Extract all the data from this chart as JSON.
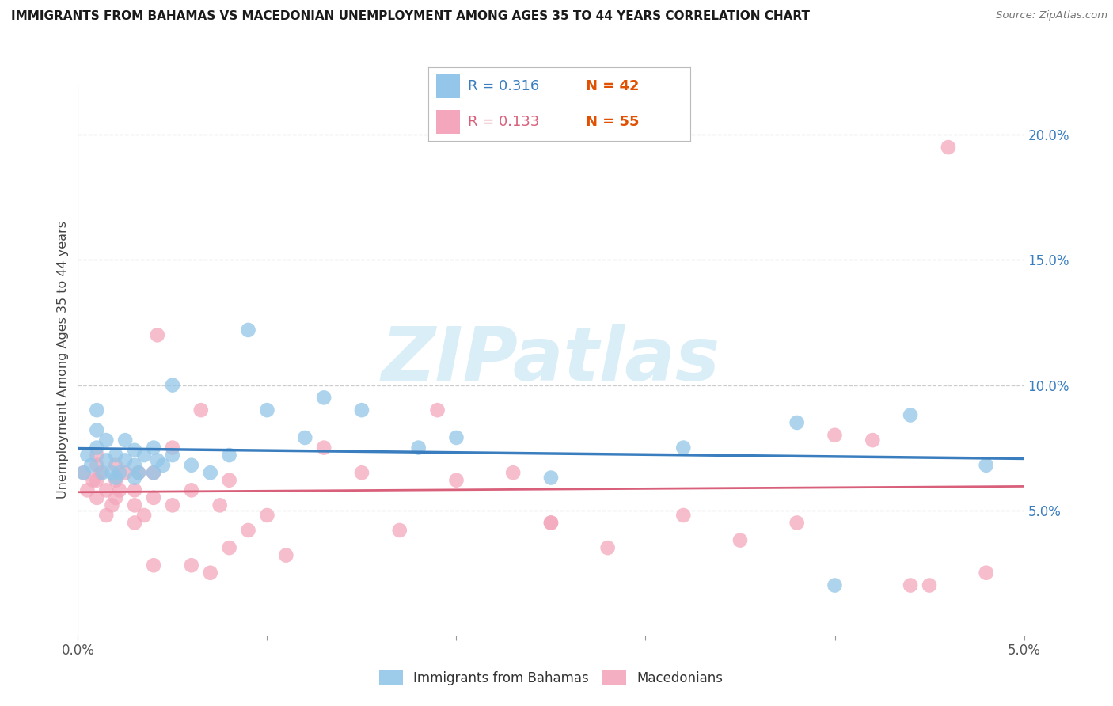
{
  "title": "IMMIGRANTS FROM BAHAMAS VS MACEDONIAN UNEMPLOYMENT AMONG AGES 35 TO 44 YEARS CORRELATION CHART",
  "source": "Source: ZipAtlas.com",
  "ylabel": "Unemployment Among Ages 35 to 44 years",
  "xlim": [
    0.0,
    0.05
  ],
  "ylim": [
    0.0,
    0.22
  ],
  "yticks": [
    0.05,
    0.1,
    0.15,
    0.2
  ],
  "ytick_labels": [
    "5.0%",
    "10.0%",
    "15.0%",
    "20.0%"
  ],
  "xticks": [
    0.0,
    0.01,
    0.02,
    0.03,
    0.04,
    0.05
  ],
  "xtick_labels": [
    "0.0%",
    "",
    "",
    "",
    "",
    "5.0%"
  ],
  "legend_r1": "R = 0.316",
  "legend_n1": "N = 42",
  "legend_r2": "R = 0.133",
  "legend_n2": "N = 55",
  "blue_color": "#93c6e8",
  "pink_color": "#f4a7bc",
  "blue_line_color": "#3a7ebf",
  "pink_line_color": "#d9607a",
  "n_color": "#e05000",
  "watermark_color": "#daeef8",
  "blue_scatter_x": [
    0.0003,
    0.0005,
    0.0007,
    0.001,
    0.001,
    0.001,
    0.0013,
    0.0015,
    0.0015,
    0.0018,
    0.002,
    0.002,
    0.0022,
    0.0025,
    0.0025,
    0.003,
    0.003,
    0.003,
    0.0032,
    0.0035,
    0.004,
    0.004,
    0.0042,
    0.0045,
    0.005,
    0.005,
    0.006,
    0.007,
    0.008,
    0.009,
    0.01,
    0.012,
    0.013,
    0.015,
    0.018,
    0.02,
    0.025,
    0.032,
    0.038,
    0.04,
    0.044,
    0.048
  ],
  "blue_scatter_y": [
    0.065,
    0.072,
    0.068,
    0.075,
    0.082,
    0.09,
    0.065,
    0.07,
    0.078,
    0.065,
    0.063,
    0.072,
    0.065,
    0.07,
    0.078,
    0.063,
    0.068,
    0.074,
    0.065,
    0.072,
    0.065,
    0.075,
    0.07,
    0.068,
    0.072,
    0.1,
    0.068,
    0.065,
    0.072,
    0.122,
    0.09,
    0.079,
    0.095,
    0.09,
    0.075,
    0.079,
    0.063,
    0.075,
    0.085,
    0.02,
    0.088,
    0.068
  ],
  "pink_scatter_x": [
    0.0003,
    0.0005,
    0.0008,
    0.001,
    0.001,
    0.001,
    0.001,
    0.0012,
    0.0015,
    0.0015,
    0.0018,
    0.002,
    0.002,
    0.002,
    0.0022,
    0.0025,
    0.003,
    0.003,
    0.003,
    0.0032,
    0.0035,
    0.004,
    0.004,
    0.0042,
    0.005,
    0.005,
    0.006,
    0.0065,
    0.007,
    0.0075,
    0.008,
    0.009,
    0.01,
    0.011,
    0.013,
    0.015,
    0.017,
    0.019,
    0.02,
    0.023,
    0.025,
    0.028,
    0.032,
    0.035,
    0.038,
    0.04,
    0.042,
    0.044,
    0.046,
    0.048,
    0.004,
    0.006,
    0.008,
    0.025,
    0.045
  ],
  "pink_scatter_y": [
    0.065,
    0.058,
    0.062,
    0.055,
    0.062,
    0.068,
    0.072,
    0.065,
    0.048,
    0.058,
    0.052,
    0.055,
    0.062,
    0.068,
    0.058,
    0.065,
    0.045,
    0.052,
    0.058,
    0.065,
    0.048,
    0.055,
    0.065,
    0.12,
    0.052,
    0.075,
    0.058,
    0.09,
    0.025,
    0.052,
    0.062,
    0.042,
    0.048,
    0.032,
    0.075,
    0.065,
    0.042,
    0.09,
    0.062,
    0.065,
    0.045,
    0.035,
    0.048,
    0.038,
    0.045,
    0.08,
    0.078,
    0.02,
    0.195,
    0.025,
    0.028,
    0.028,
    0.035,
    0.045,
    0.02
  ]
}
